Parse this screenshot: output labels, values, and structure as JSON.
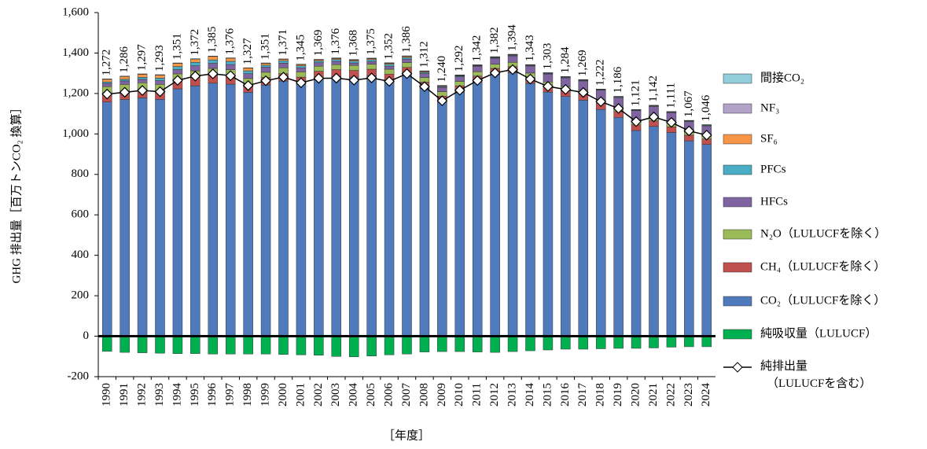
{
  "chart_data": {
    "type": "bar",
    "y_label": "GHG 排出量［百万トンCO₂ 換算］",
    "x_label": "［年度］",
    "categories": [
      "1990",
      "1991",
      "1992",
      "1993",
      "1994",
      "1995",
      "1996",
      "1997",
      "1998",
      "1999",
      "2000",
      "2001",
      "2002",
      "2003",
      "2004",
      "2005",
      "2006",
      "2007",
      "2008",
      "2009",
      "2010",
      "2011",
      "2012",
      "2013",
      "2014",
      "2015",
      "2016",
      "2017",
      "2018",
      "2019",
      "2020",
      "2021",
      "2022",
      "2023",
      "2024"
    ],
    "ylim": [
      -200,
      1600
    ],
    "yticks": [
      -200,
      0,
      200,
      400,
      600,
      800,
      {
        "value": 1000,
        "label": "1,000"
      },
      {
        "value": 1200,
        "label": "1,200"
      },
      {
        "value": 1400,
        "label": "1,400"
      },
      {
        "value": 1600,
        "label": "1,600"
      }
    ],
    "series": [
      {
        "name": "CO₂（LULUCFを除く）",
        "color": "#4f7bbd",
        "values": [
          1158,
          1170,
          1178,
          1171,
          1223,
          1238,
          1251,
          1246,
          1206,
          1242,
          1262,
          1246,
          1276,
          1285,
          1281,
          1288,
          1264,
          1297,
          1225,
          1156,
          1207,
          1255,
          1293,
          1303,
          1250,
          1207,
          1185,
          1167,
          1121,
          1082,
          1017,
          1037,
          1007,
          966,
          948
        ]
      },
      {
        "name": "CH₄（LULUCFを除く）",
        "color": "#c0504d",
        "values": [
          44,
          43,
          43,
          42,
          42,
          41,
          40,
          39,
          38,
          37,
          36,
          35,
          34,
          33,
          33,
          32,
          32,
          32,
          31,
          31,
          31,
          31,
          31,
          30,
          30,
          30,
          30,
          30,
          29,
          29,
          28,
          28,
          28,
          28,
          27
        ]
      },
      {
        "name": "N₂O（LULUCFを除く）",
        "color": "#9bbb59",
        "values": [
          32,
          32,
          32,
          32,
          32,
          33,
          33,
          33,
          30,
          26,
          29,
          26,
          25,
          25,
          25,
          25,
          24,
          24,
          23,
          22,
          22,
          22,
          21,
          21,
          21,
          20,
          20,
          20,
          19,
          19,
          18,
          18,
          18,
          17,
          17
        ]
      },
      {
        "name": "HFCs",
        "color": "#8064a2",
        "values": [
          16,
          17,
          17,
          18,
          21,
          25,
          25,
          25,
          24,
          25,
          23,
          20,
          17,
          16,
          12,
          13,
          15,
          17,
          19,
          21,
          23,
          26,
          29,
          32,
          35,
          39,
          42,
          45,
          47,
          50,
          52,
          53,
          52,
          50,
          48
        ]
      },
      {
        "name": "PFCs",
        "color": "#4bacc6",
        "values": [
          7,
          8,
          10,
          13,
          15,
          17,
          17,
          16,
          14,
          10,
          12,
          10,
          9,
          9,
          9,
          9,
          9,
          8,
          6,
          4,
          4,
          3,
          3,
          3,
          3,
          3,
          3,
          3,
          3,
          3,
          3,
          3,
          3,
          3,
          3
        ]
      },
      {
        "name": "SF₆",
        "color": "#f79646",
        "values": [
          13,
          14,
          15,
          15,
          16,
          16,
          17,
          15,
          13,
          9,
          7,
          6,
          6,
          5,
          5,
          5,
          5,
          5,
          4,
          3,
          2,
          2,
          2,
          2,
          2,
          2,
          2,
          2,
          2,
          2,
          2,
          2,
          2,
          2,
          2
        ]
      },
      {
        "name": "NF₃",
        "color": "#b3a2c7",
        "values": [
          0,
          0,
          0,
          0,
          0,
          0,
          0,
          0,
          0,
          0,
          0,
          0,
          0,
          1,
          1,
          1,
          1,
          1,
          2,
          2,
          2,
          2,
          2,
          2,
          1,
          1,
          1,
          1,
          0,
          0,
          0,
          0,
          0,
          0,
          0
        ]
      },
      {
        "name": "間接CO₂",
        "color": "#92cddc",
        "values": [
          2,
          2,
          2,
          2,
          2,
          2,
          2,
          2,
          2,
          2,
          2,
          2,
          2,
          2,
          2,
          2,
          2,
          2,
          2,
          1,
          1,
          1,
          1,
          1,
          1,
          1,
          1,
          1,
          1,
          1,
          1,
          1,
          1,
          1,
          1
        ]
      },
      {
        "name": "純吸収量（LULUCF）",
        "color": "#00b050",
        "values": [
          -75,
          -80,
          -82,
          -84,
          -86,
          -86,
          -88,
          -88,
          -88,
          -88,
          -90,
          -92,
          -94,
          -100,
          -102,
          -98,
          -92,
          -88,
          -78,
          -76,
          -76,
          -78,
          -80,
          -76,
          -72,
          -68,
          -64,
          -64,
          -62,
          -60,
          -60,
          -58,
          -54,
          -52,
          -52
        ]
      },
      {
        "name": "純排出量\n（LULUCFを含む）",
        "type": "line",
        "color": "#000000",
        "values": [
          1197,
          1206,
          1215,
          1209,
          1265,
          1286,
          1297,
          1288,
          1239,
          1263,
          1281,
          1253,
          1275,
          1276,
          1266,
          1277,
          1260,
          1298,
          1234,
          1164,
          1216,
          1264,
          1302,
          1318,
          1271,
          1235,
          1220,
          1205,
          1160,
          1126,
          1061,
          1084,
          1057,
          1015,
          994
        ]
      }
    ],
    "totals": {
      "values": [
        1272,
        1286,
        1297,
        1293,
        1351,
        1372,
        1385,
        1376,
        1327,
        1351,
        1371,
        1345,
        1369,
        1376,
        1368,
        1375,
        1352,
        1386,
        1312,
        1240,
        1292,
        1342,
        1382,
        1394,
        1343,
        1303,
        1284,
        1269,
        1222,
        1186,
        1121,
        1142,
        1111,
        1067,
        1046
      ],
      "value_labels": [
        "1,272",
        "1,286",
        "1,297",
        "1,293",
        "1,351",
        "1,372",
        "1,385",
        "1,376",
        "1,327",
        "1,351",
        "1,371",
        "1,345",
        "1,369",
        "1,376",
        "1,368",
        "1,375",
        "1,352",
        "1,386",
        "1,312",
        "1,240",
        "1,292",
        "1,342",
        "1,382",
        "1,394",
        "1,343",
        "1,303",
        "1,284",
        "1,269",
        "1,222",
        "1,186",
        "1,121",
        "1,142",
        "1,111",
        "1,067",
        "1,046"
      ]
    }
  }
}
